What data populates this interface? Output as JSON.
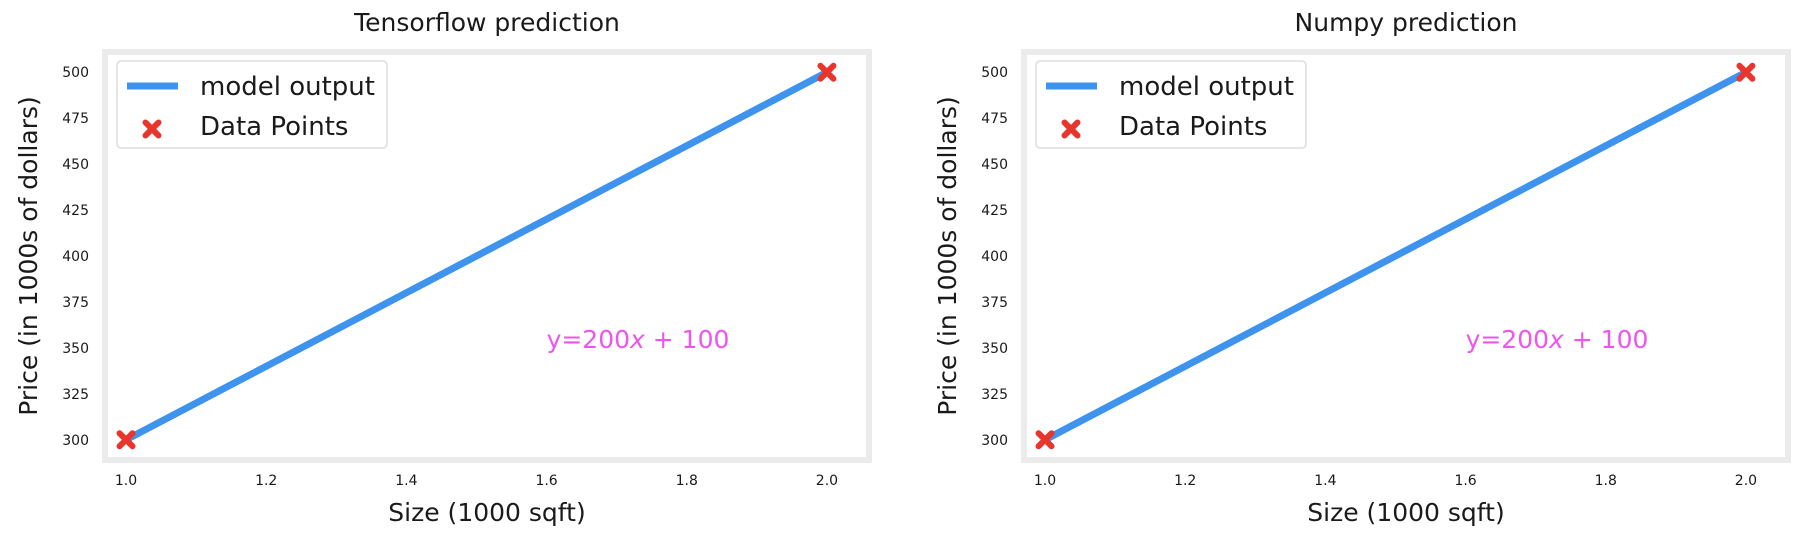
{
  "chart_data": [
    {
      "type": "line",
      "title": "Tensorflow prediction",
      "xlabel": "Size (1000 sqft)",
      "ylabel": "Price (in 1000s of dollars)",
      "xlim": [
        0.97,
        2.06
      ],
      "ylim": [
        289,
        511
      ],
      "xticks": [
        1.0,
        1.2,
        1.4,
        1.6,
        1.8,
        2.0
      ],
      "xtick_labels": [
        "1.0",
        "1.2",
        "1.4",
        "1.6",
        "1.8",
        "2.0"
      ],
      "yticks": [
        300,
        325,
        350,
        375,
        400,
        425,
        450,
        475,
        500
      ],
      "ytick_labels": [
        "300",
        "325",
        "350",
        "375",
        "400",
        "425",
        "450",
        "475",
        "500"
      ],
      "grid": false,
      "legend_position": "top-left",
      "series": [
        {
          "name": "model output",
          "kind": "line",
          "color": "#3d93ee",
          "x": [
            1.0,
            2.0
          ],
          "y": [
            300,
            500
          ]
        },
        {
          "name": "Data Points",
          "kind": "scatter",
          "marker": "X",
          "color": "#e8362e",
          "x": [
            1.0,
            2.0
          ],
          "y": [
            300,
            500
          ]
        }
      ],
      "annotation": {
        "text": "y=200x + 100",
        "x": 1.6,
        "y": 350,
        "color": "#ee55ee"
      }
    },
    {
      "type": "line",
      "title": "Numpy prediction",
      "xlabel": "Size (1000 sqft)",
      "ylabel": "Price (in 1000s of dollars)",
      "xlim": [
        0.97,
        2.06
      ],
      "ylim": [
        289,
        511
      ],
      "xticks": [
        1.0,
        1.2,
        1.4,
        1.6,
        1.8,
        2.0
      ],
      "xtick_labels": [
        "1.0",
        "1.2",
        "1.4",
        "1.6",
        "1.8",
        "2.0"
      ],
      "yticks": [
        300,
        325,
        350,
        375,
        400,
        425,
        450,
        475,
        500
      ],
      "ytick_labels": [
        "300",
        "325",
        "350",
        "375",
        "400",
        "425",
        "450",
        "475",
        "500"
      ],
      "grid": false,
      "legend_position": "top-left",
      "series": [
        {
          "name": "model output",
          "kind": "line",
          "color": "#3d93ee",
          "x": [
            1.0,
            2.0
          ],
          "y": [
            300,
            500
          ]
        },
        {
          "name": "Data Points",
          "kind": "scatter",
          "marker": "X",
          "color": "#e8362e",
          "x": [
            1.0,
            2.0
          ],
          "y": [
            300,
            500
          ]
        }
      ],
      "annotation": {
        "text": "y=200x + 100",
        "x": 1.6,
        "y": 350,
        "color": "#ee55ee"
      }
    }
  ]
}
